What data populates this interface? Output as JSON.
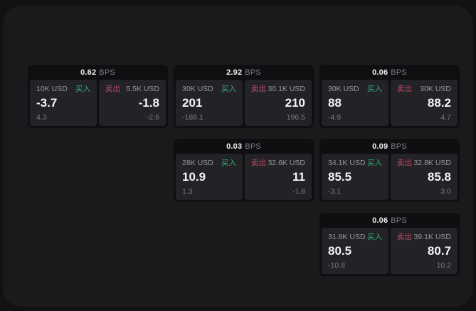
{
  "labels": {
    "bps_suffix": "BPS",
    "buy": "买入",
    "sell": "卖出"
  },
  "colors": {
    "buy_accent": "#2fae75",
    "sell_accent": "#c24b63",
    "panel_background": "#1a1a1c",
    "card_background": "#0f0f12",
    "pane_background": "#232327"
  },
  "cards": [
    {
      "row": 1,
      "col": 1,
      "bps": "0.62",
      "buy": {
        "size": "10K USD",
        "price": "-3.7",
        "delta": "4.3"
      },
      "sell": {
        "size": "5.5K USD",
        "price": "-1.8",
        "delta": "-2.6"
      }
    },
    {
      "row": 1,
      "col": 2,
      "bps": "2.92",
      "buy": {
        "size": "30K USD",
        "price": "201",
        "delta": "-188.1"
      },
      "sell": {
        "size": "30.1K USD",
        "price": "210",
        "delta": "196.5"
      }
    },
    {
      "row": 1,
      "col": 3,
      "bps": "0.06",
      "buy": {
        "size": "30K USD",
        "price": "88",
        "delta": "-4.9"
      },
      "sell": {
        "size": "30K USD",
        "price": "88.2",
        "delta": "4.7"
      }
    },
    {
      "row": 2,
      "col": 2,
      "bps": "0.03",
      "buy": {
        "size": "28K USD",
        "price": "10.9",
        "delta": "1.3"
      },
      "sell": {
        "size": "32.6K USD",
        "price": "11",
        "delta": "-1.8"
      }
    },
    {
      "row": 2,
      "col": 3,
      "bps": "0.09",
      "buy": {
        "size": "34.1K USD",
        "price": "85.5",
        "delta": "-3.1"
      },
      "sell": {
        "size": "32.8K USD",
        "price": "85.8",
        "delta": "3.0"
      }
    },
    {
      "row": 3,
      "col": 3,
      "bps": "0.06",
      "buy": {
        "size": "31.8K USD",
        "price": "80.5",
        "delta": "-10.8"
      },
      "sell": {
        "size": "39.1K USD",
        "price": "80.7",
        "delta": "10.2"
      }
    }
  ]
}
